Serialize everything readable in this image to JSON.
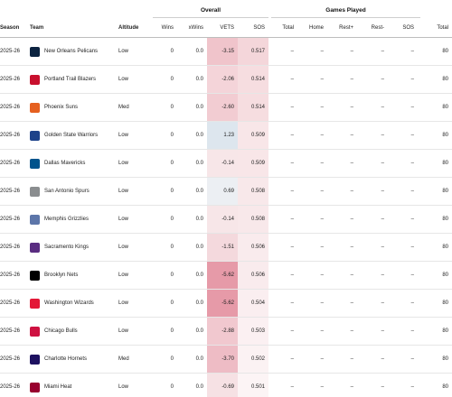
{
  "groups": {
    "overall": "Overall",
    "games_played": "Games Played"
  },
  "columns": {
    "season": "Season",
    "team": "Team",
    "altitude": "Altitude",
    "wins": "Wins",
    "xwins": "xWins",
    "vets": "VETS",
    "sos": "SOS",
    "total": "Total",
    "home": "Home",
    "rest_plus": "Rest+",
    "rest_minus": "Rest-",
    "sos2": "SOS",
    "total2": "Total"
  },
  "rows": [
    {
      "season": "2025-26",
      "team": "New Orleans Pelicans",
      "logo": "pelicans-logo",
      "logo_color": "#0c2340",
      "altitude": "Low",
      "wins": "0",
      "xwins": "0.0",
      "vets": "-3.15",
      "vets_bg": "#f0c4cb",
      "sos": "0.517",
      "sos_bg": "#f4d6da",
      "total": "–",
      "home": "–",
      "rest_plus": "–",
      "rest_minus": "–",
      "sos2": "–",
      "total2": "80"
    },
    {
      "season": "2025-26",
      "team": "Portland Trail Blazers",
      "logo": "blazers-logo",
      "logo_color": "#c8102e",
      "altitude": "Low",
      "wins": "0",
      "xwins": "0.0",
      "vets": "-2.06",
      "vets_bg": "#f4d4d9",
      "sos": "0.514",
      "sos_bg": "#f6dde0",
      "total": "–",
      "home": "–",
      "rest_plus": "–",
      "rest_minus": "–",
      "sos2": "–",
      "total2": "80"
    },
    {
      "season": "2025-26",
      "team": "Phoenix Suns",
      "logo": "suns-logo",
      "logo_color": "#e56020",
      "altitude": "Med",
      "wins": "0",
      "xwins": "0.0",
      "vets": "-2.60",
      "vets_bg": "#f2ccd2",
      "sos": "0.514",
      "sos_bg": "#f6dde0",
      "total": "–",
      "home": "–",
      "rest_plus": "–",
      "rest_minus": "–",
      "sos2": "–",
      "total2": "80"
    },
    {
      "season": "2025-26",
      "team": "Golden State Warriors",
      "logo": "warriors-logo",
      "logo_color": "#1d428a",
      "altitude": "Low",
      "wins": "0",
      "xwins": "0.0",
      "vets": "1.23",
      "vets_bg": "#dde6ee",
      "sos": "0.509",
      "sos_bg": "#f8e6e8",
      "total": "–",
      "home": "–",
      "rest_plus": "–",
      "rest_minus": "–",
      "sos2": "–",
      "total2": "80"
    },
    {
      "season": "2025-26",
      "team": "Dallas Mavericks",
      "logo": "mavericks-logo",
      "logo_color": "#00538c",
      "altitude": "Low",
      "wins": "0",
      "xwins": "0.0",
      "vets": "-0.14",
      "vets_bg": "#f7e6e8",
      "sos": "0.509",
      "sos_bg": "#f8e6e8",
      "total": "–",
      "home": "–",
      "rest_plus": "–",
      "rest_minus": "–",
      "sos2": "–",
      "total2": "80"
    },
    {
      "season": "2025-26",
      "team": "San Antonio Spurs",
      "logo": "spurs-logo",
      "logo_color": "#8a8d8f",
      "altitude": "Low",
      "wins": "0",
      "xwins": "0.0",
      "vets": "0.69",
      "vets_bg": "#eceff3",
      "sos": "0.508",
      "sos_bg": "#f8e8ea",
      "total": "–",
      "home": "–",
      "rest_plus": "–",
      "rest_minus": "–",
      "sos2": "–",
      "total2": "80"
    },
    {
      "season": "2025-26",
      "team": "Memphis Grizzlies",
      "logo": "grizzlies-logo",
      "logo_color": "#5d76a9",
      "altitude": "Low",
      "wins": "0",
      "xwins": "0.0",
      "vets": "-0.14",
      "vets_bg": "#f7e6e8",
      "sos": "0.508",
      "sos_bg": "#f8e8ea",
      "total": "–",
      "home": "–",
      "rest_plus": "–",
      "rest_minus": "–",
      "sos2": "–",
      "total2": "80"
    },
    {
      "season": "2025-26",
      "team": "Sacramento Kings",
      "logo": "kings-logo",
      "logo_color": "#5a2d81",
      "altitude": "Low",
      "wins": "0",
      "xwins": "0.0",
      "vets": "-1.51",
      "vets_bg": "#f4d9dd",
      "sos": "0.506",
      "sos_bg": "#f9ebed",
      "total": "–",
      "home": "–",
      "rest_plus": "–",
      "rest_minus": "–",
      "sos2": "–",
      "total2": "80"
    },
    {
      "season": "2025-26",
      "team": "Brooklyn Nets",
      "logo": "nets-logo",
      "logo_color": "#000000",
      "altitude": "Low",
      "wins": "0",
      "xwins": "0.0",
      "vets": "-5.62",
      "vets_bg": "#e69aa8",
      "sos": "0.506",
      "sos_bg": "#f9ebed",
      "total": "–",
      "home": "–",
      "rest_plus": "–",
      "rest_minus": "–",
      "sos2": "–",
      "total2": "80"
    },
    {
      "season": "2025-26",
      "team": "Washington Wizards",
      "logo": "wizards-logo",
      "logo_color": "#e31837",
      "altitude": "Low",
      "wins": "0",
      "xwins": "0.0",
      "vets": "-5.62",
      "vets_bg": "#e69aa8",
      "sos": "0.504",
      "sos_bg": "#faeef0",
      "total": "–",
      "home": "–",
      "rest_plus": "–",
      "rest_minus": "–",
      "sos2": "–",
      "total2": "80"
    },
    {
      "season": "2025-26",
      "team": "Chicago Bulls",
      "logo": "bulls-logo",
      "logo_color": "#ce1141",
      "altitude": "Low",
      "wins": "0",
      "xwins": "0.0",
      "vets": "-2.88",
      "vets_bg": "#f1c8cf",
      "sos": "0.503",
      "sos_bg": "#fbf0f2",
      "total": "–",
      "home": "–",
      "rest_plus": "–",
      "rest_minus": "–",
      "sos2": "–",
      "total2": "80"
    },
    {
      "season": "2025-26",
      "team": "Charlotte Hornets",
      "logo": "hornets-logo",
      "logo_color": "#1d1160",
      "altitude": "Med",
      "wins": "0",
      "xwins": "0.0",
      "vets": "-3.70",
      "vets_bg": "#eebcc5",
      "sos": "0.502",
      "sos_bg": "#fbf2f3",
      "total": "–",
      "home": "–",
      "rest_plus": "–",
      "rest_minus": "–",
      "sos2": "–",
      "total2": "80"
    },
    {
      "season": "2025-26",
      "team": "Miami Heat",
      "logo": "heat-logo",
      "logo_color": "#98002e",
      "altitude": "Low",
      "wins": "0",
      "xwins": "0.0",
      "vets": "-0.69",
      "vets_bg": "#f6e1e4",
      "sos": "0.501",
      "sos_bg": "#fcf4f5",
      "total": "–",
      "home": "–",
      "rest_plus": "–",
      "rest_minus": "–",
      "sos2": "–",
      "total2": "80"
    }
  ]
}
